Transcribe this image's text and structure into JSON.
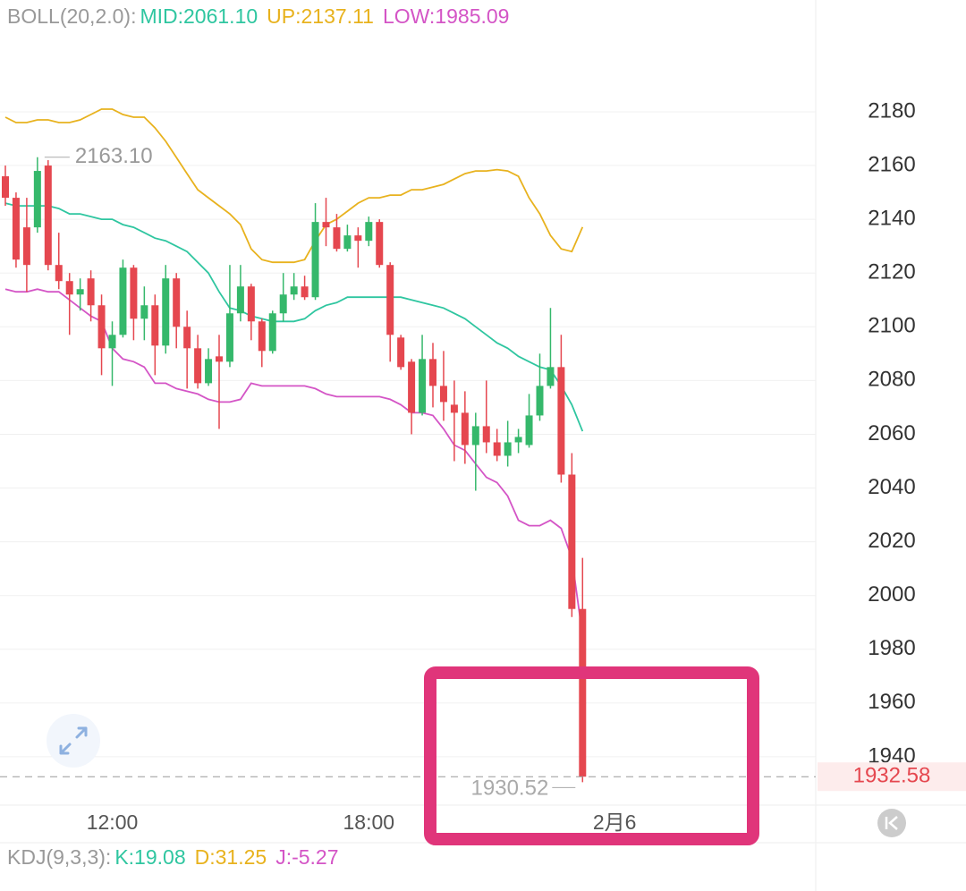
{
  "chart_data": {
    "type": "candlestick",
    "header": {
      "label": "BOLL(20,2.0):",
      "items": [
        {
          "text": "MID:2061.10",
          "color": "#2fc6a0"
        },
        {
          "text": "UP:2137.11",
          "color": "#e8b21e"
        },
        {
          "text": "LOW:1985.09",
          "color": "#d455c6"
        }
      ]
    },
    "lower_header": {
      "label": "KDJ(9,3,3):",
      "items": [
        {
          "text": "K:19.08",
          "color": "#2fc6a0"
        },
        {
          "text": "D:31.25",
          "color": "#e8b21e"
        },
        {
          "text": "J:-5.27",
          "color": "#d455c6"
        }
      ]
    },
    "categories": [
      null,
      null,
      null,
      null,
      null,
      null,
      null,
      null,
      null,
      null,
      "12:00",
      null,
      null,
      null,
      null,
      null,
      null,
      null,
      null,
      null,
      null,
      null,
      null,
      null,
      null,
      null,
      null,
      null,
      null,
      null,
      null,
      null,
      null,
      null,
      "18:00",
      null,
      null,
      null,
      null,
      null,
      null,
      null,
      null,
      null,
      null,
      null,
      null,
      null,
      null,
      null,
      null,
      null,
      null,
      null,
      null,
      null,
      null,
      "2月6"
    ],
    "open": [
      2156,
      2148,
      2137,
      2137,
      2160,
      2123,
      2117,
      2112,
      2118,
      2108,
      2092,
      2097,
      2122,
      2103,
      2108,
      2093,
      2118,
      2100,
      2092,
      2079,
      2089,
      2087,
      2105,
      2115,
      2102,
      2091,
      2105,
      2112,
      2115,
      2111,
      2139,
      2137,
      2129,
      2134,
      2132,
      2139,
      2123,
      2096,
      2087,
      2068,
      2088,
      2078,
      2071,
      2068,
      2056,
      2063,
      2057,
      2052,
      2057,
      2056,
      2067,
      2078,
      2085,
      2045,
      1995,
      null,
      null,
      null
    ],
    "high": [
      2160,
      2150,
      2148,
      2163.1,
      2162,
      2135,
      2120,
      2118,
      2121,
      2112,
      2102,
      2125,
      2123,
      2115,
      2112,
      2123,
      2120,
      2106,
      2097,
      2092,
      2097,
      2123,
      2123,
      2116,
      2103,
      2106,
      2120,
      2120,
      2119,
      2146,
      2148,
      2142,
      2138,
      2137,
      2141,
      2140,
      2124,
      2097,
      2088,
      2097,
      2094,
      2091,
      2080,
      2076,
      2068,
      2080,
      2062,
      2065,
      2062,
      2075,
      2090,
      2107,
      2097,
      2053,
      2014,
      null,
      null,
      null
    ],
    "low": [
      2145,
      2122,
      2113,
      2135,
      2121,
      2114,
      2097,
      2106,
      2102,
      2082,
      2078,
      2096,
      2095,
      2095,
      2082,
      2090,
      2092,
      2077,
      2077,
      2078,
      2062,
      2085,
      2102,
      2095,
      2085,
      2090,
      2102,
      2110,
      2110,
      2110,
      2130,
      2128,
      2128,
      2122,
      2130,
      2122,
      2087,
      2084,
      2060,
      2067,
      2070,
      2065,
      2050,
      2049,
      2039,
      2053,
      2050,
      2048,
      2053,
      2055,
      2065,
      2077,
      2042,
      1992,
      1930.52,
      null,
      null,
      null
    ],
    "close": [
      2148,
      2125,
      2123,
      2158,
      2123,
      2117,
      2112,
      2114,
      2108,
      2092,
      2097,
      2122,
      2103,
      2108,
      2093,
      2118,
      2100,
      2092,
      2079,
      2088,
      2087,
      2105,
      2115,
      2102,
      2091,
      2105,
      2112,
      2115,
      2111,
      2139,
      2137,
      2129,
      2134,
      2132,
      2139,
      2123,
      2097,
      2085,
      2068,
      2088,
      2078,
      2072,
      2068,
      2056,
      2063,
      2057,
      2052,
      2057,
      2059,
      2067,
      2078,
      2085,
      2045,
      1995,
      1932.58,
      null,
      null,
      null
    ],
    "up_color": "#35b86b",
    "down_color": "#e5474f",
    "series": [
      {
        "color": "#e8b21e",
        "values": [
          2178,
          2176,
          2176,
          2177,
          2177,
          2176,
          2176,
          2177,
          2179,
          2181,
          2181,
          2179,
          2178,
          2178,
          2174,
          2169,
          2163,
          2157,
          2151,
          2148,
          2145,
          2142,
          2138,
          2129,
          2125,
          2124,
          2124,
          2124,
          2125,
          2132,
          2138,
          2140,
          2143,
          2146,
          2148,
          2148,
          2149,
          2149,
          2151,
          2151,
          2152,
          2153,
          2155,
          2157,
          2158,
          2158,
          2158.5,
          2158,
          2156,
          2148,
          2142,
          2134,
          2129,
          2128,
          2137.11,
          null,
          null,
          null
        ]
      },
      {
        "color": "#2fc6a0",
        "values": [
          2146,
          2145,
          2145,
          2145,
          2145,
          2144,
          2142,
          2142,
          2141,
          2140,
          2140,
          2138,
          2137,
          2135,
          2133,
          2132,
          2130,
          2128,
          2124,
          2120,
          2113,
          2107,
          2106,
          2104,
          2103,
          2102,
          2102,
          2102,
          2103,
          2106,
          2108,
          2109,
          2111,
          2111,
          2111,
          2111,
          2111,
          2111,
          2110,
          2109,
          2108,
          2107,
          2105,
          2103,
          2100,
          2097,
          2094,
          2092,
          2089,
          2087,
          2085,
          2084,
          2078,
          2071,
          2061.1,
          null,
          null,
          null
        ]
      },
      {
        "color": "#d455c6",
        "values": [
          2114,
          2113,
          2113,
          2114,
          2113,
          2113,
          2110,
          2107,
          2104,
          2102,
          2092,
          2088,
          2087,
          2085,
          2079,
          2079,
          2077,
          2076,
          2075,
          2073,
          2072,
          2072,
          2073,
          2079,
          2078,
          2078,
          2078,
          2078,
          2078,
          2077,
          2075,
          2074,
          2074,
          2074,
          2074,
          2074,
          2073,
          2071,
          2068,
          2068,
          2067,
          2062,
          2056,
          2054,
          2049,
          2044,
          2042,
          2037,
          2028,
          2026,
          2026,
          2028,
          2025,
          2014,
          1985.09,
          null,
          null,
          null
        ]
      }
    ],
    "ylim": [
      1922,
      2221.6
    ],
    "yticks": [
      1940,
      1960,
      1980,
      2000,
      2020,
      2040,
      2060,
      2080,
      2100,
      2120,
      2140,
      2160,
      2180
    ],
    "grid": true,
    "max_label": "2163.10",
    "min_label": "1930.52",
    "current_price": 1932.58
  }
}
